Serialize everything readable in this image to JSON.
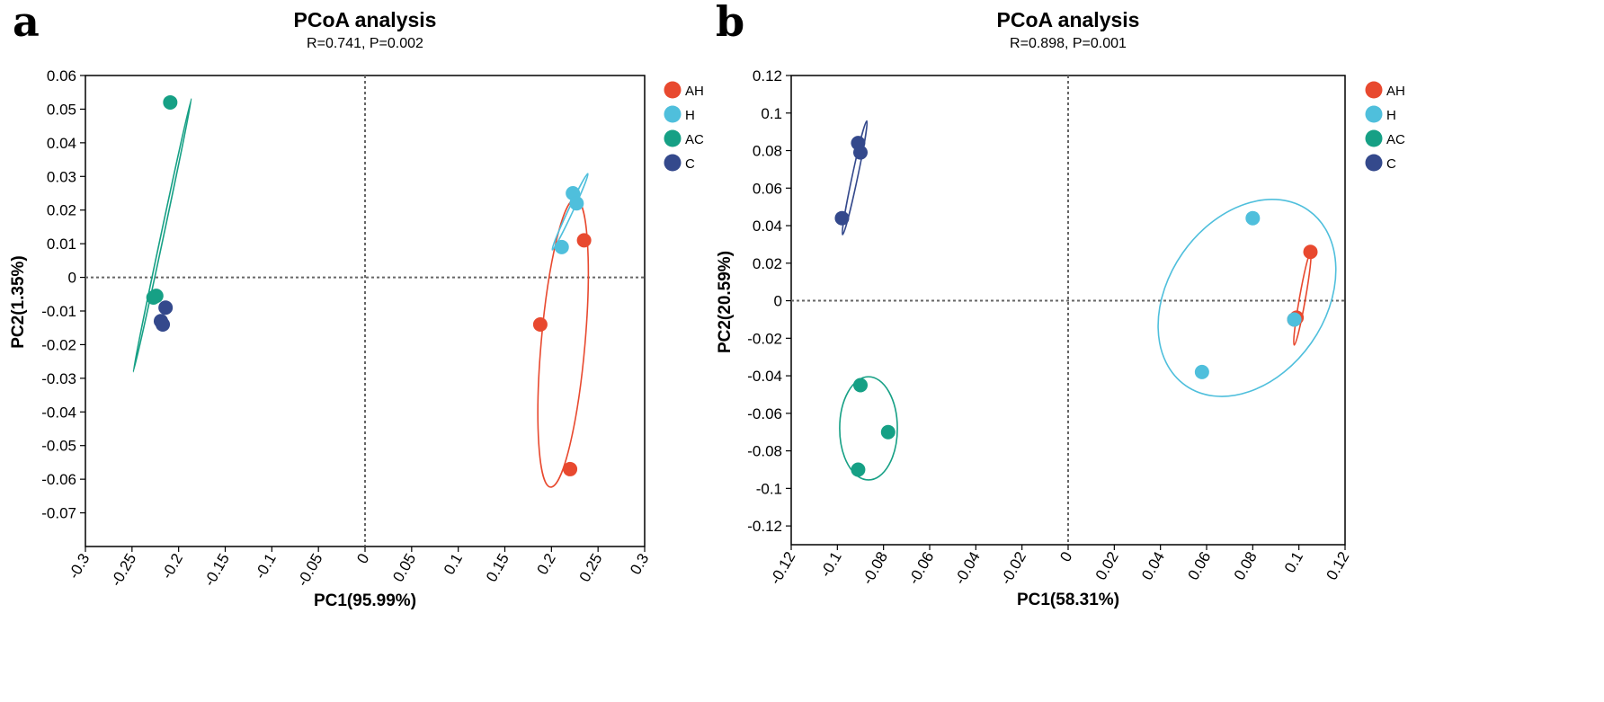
{
  "chart_data": [
    {
      "type": "scatter",
      "panel": "a",
      "title": "PCoA analysis",
      "subtitle": "R=0.741, P=0.002",
      "xlabel": "PC1(95.99%)",
      "ylabel": "PC2(1.35%)",
      "xlim": [
        -0.3,
        0.3
      ],
      "ylim": [
        -0.08,
        0.06
      ],
      "xticks": [
        -0.3,
        -0.25,
        -0.2,
        -0.15,
        -0.1,
        -0.05,
        0,
        0.05,
        0.1,
        0.15,
        0.2,
        0.25,
        0.3
      ],
      "xtick_labels": [
        "-0.3",
        "-0.25",
        "-0.2",
        "-0.15",
        "-0.1",
        "-0.05",
        "0",
        "0.05",
        "0.1",
        "0.15",
        "0.2",
        "0.25",
        "0.3"
      ],
      "yticks": [
        -0.07,
        -0.06,
        -0.05,
        -0.04,
        -0.03,
        -0.02,
        -0.01,
        0,
        0.01,
        0.02,
        0.03,
        0.04,
        0.05,
        0.06
      ],
      "ytick_labels": [
        "-0.07",
        "-0.06",
        "-0.05",
        "-0.04",
        "-0.03",
        "-0.02",
        "-0.01",
        "0",
        "0.01",
        "0.02",
        "0.03",
        "0.04",
        "0.05",
        "0.06"
      ],
      "reference_lines": {
        "x": 0,
        "y": 0,
        "style": "dotted"
      },
      "legend_position": "right",
      "series": [
        {
          "name": "AH",
          "color": "#e8492f",
          "points": [
            {
              "x": 0.235,
              "y": 0.011
            },
            {
              "x": 0.188,
              "y": -0.014
            },
            {
              "x": 0.22,
              "y": -0.057
            }
          ],
          "ellipse": {
            "cx": 0.2125,
            "cy": -0.0195,
            "rx": 0.0235,
            "ry": 0.043,
            "angle_deg": 5
          }
        },
        {
          "name": "H",
          "color": "#4fbfdc",
          "points": [
            {
              "x": 0.223,
              "y": 0.025
            },
            {
              "x": 0.227,
              "y": 0.022
            },
            {
              "x": 0.211,
              "y": 0.009
            }
          ],
          "ellipse": {
            "cx": 0.22,
            "cy": 0.0195,
            "rx": 0.0025,
            "ry": 0.0125,
            "angle_deg": 25
          }
        },
        {
          "name": "AC",
          "color": "#16a085",
          "points": [
            {
              "x": -0.209,
              "y": 0.052
            },
            {
              "x": -0.227,
              "y": -0.006
            },
            {
              "x": -0.224,
              "y": -0.0055
            }
          ],
          "ellipse": {
            "cx": -0.2175,
            "cy": 0.0125,
            "rx": 0.0015,
            "ry": 0.0415,
            "angle_deg": 12
          }
        },
        {
          "name": "C",
          "color": "#34498c",
          "points": [
            {
              "x": -0.214,
              "y": -0.009
            },
            {
              "x": -0.219,
              "y": -0.013
            },
            {
              "x": -0.217,
              "y": -0.014
            }
          ],
          "ellipse": null
        }
      ]
    },
    {
      "type": "scatter",
      "panel": "b",
      "title": "PCoA analysis",
      "subtitle": "R=0.898, P=0.001",
      "xlabel": "PC1(58.31%)",
      "ylabel": "PC2(20.59%)",
      "xlim": [
        -0.12,
        0.12
      ],
      "ylim": [
        -0.13,
        0.12
      ],
      "xticks": [
        -0.12,
        -0.1,
        -0.08,
        -0.06,
        -0.04,
        -0.02,
        0,
        0.02,
        0.04,
        0.06,
        0.08,
        0.1,
        0.12
      ],
      "xtick_labels": [
        "-0.12",
        "-0.1",
        "-0.08",
        "-0.06",
        "-0.04",
        "-0.02",
        "0",
        "0.02",
        "0.04",
        "0.06",
        "0.08",
        "0.1",
        "0.12"
      ],
      "yticks": [
        -0.12,
        -0.1,
        -0.08,
        -0.06,
        -0.04,
        -0.02,
        0,
        0.02,
        0.04,
        0.06,
        0.08,
        0.1,
        0.12
      ],
      "ytick_labels": [
        "-0.12",
        "-0.1",
        "-0.08",
        "-0.06",
        "-0.04",
        "-0.02",
        "0",
        "0.02",
        "0.04",
        "0.06",
        "0.08",
        "0.1",
        "0.12"
      ],
      "reference_lines": {
        "x": 0,
        "y": 0,
        "style": "dotted"
      },
      "legend_position": "right",
      "series": [
        {
          "name": "AH",
          "color": "#e8492f",
          "points": [
            {
              "x": 0.105,
              "y": 0.026
            },
            {
              "x": 0.099,
              "y": -0.009
            },
            {
              "x": 0.098,
              "y": -0.01
            }
          ],
          "ellipse": {
            "cx": 0.1015,
            "cy": 0.001,
            "rx": 0.0013,
            "ry": 0.025,
            "angle_deg": 10
          }
        },
        {
          "name": "H",
          "color": "#4fbfdc",
          "points": [
            {
              "x": 0.08,
              "y": 0.044
            },
            {
              "x": 0.058,
              "y": -0.038
            },
            {
              "x": 0.098,
              "y": -0.01
            }
          ],
          "ellipse": {
            "cx": 0.0775,
            "cy": 0.0015,
            "rx": 0.034,
            "ry": 0.057,
            "angle_deg": 35
          }
        },
        {
          "name": "AC",
          "color": "#16a085",
          "points": [
            {
              "x": -0.09,
              "y": -0.045
            },
            {
              "x": -0.078,
              "y": -0.07
            },
            {
              "x": -0.091,
              "y": -0.09
            }
          ],
          "ellipse": {
            "cx": -0.0865,
            "cy": -0.068,
            "rx": 0.0125,
            "ry": 0.0275,
            "angle_deg": 0
          }
        },
        {
          "name": "C",
          "color": "#34498c",
          "points": [
            {
              "x": -0.091,
              "y": 0.084
            },
            {
              "x": -0.09,
              "y": 0.079
            },
            {
              "x": -0.098,
              "y": 0.044
            }
          ],
          "ellipse": {
            "cx": -0.0925,
            "cy": 0.0655,
            "rx": 0.0012,
            "ry": 0.031,
            "angle_deg": 12
          }
        }
      ]
    }
  ]
}
